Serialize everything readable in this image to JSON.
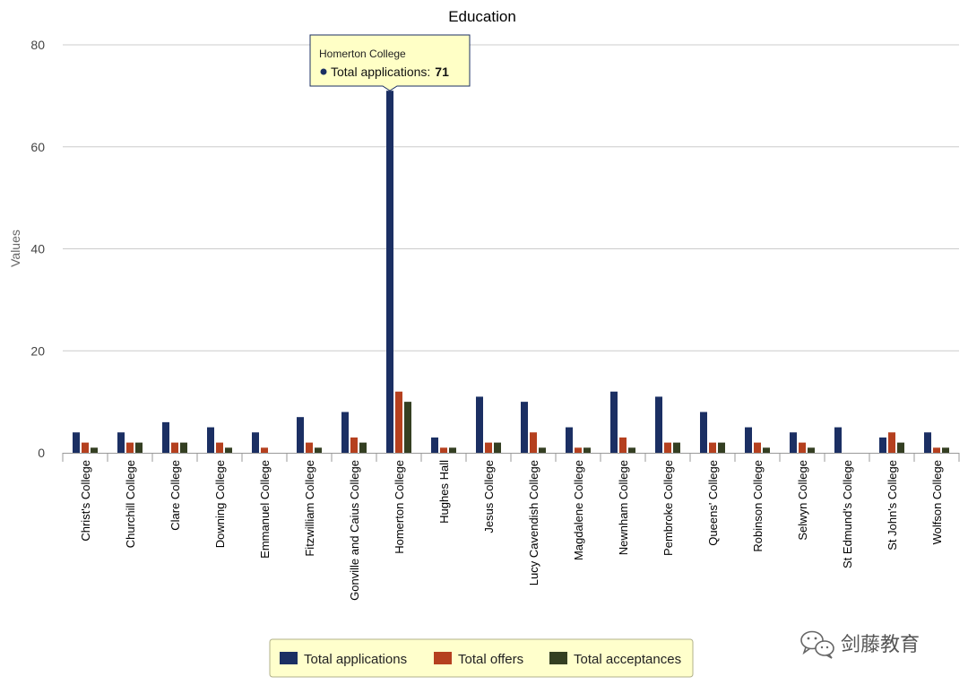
{
  "chart_data": {
    "type": "bar",
    "title": "Education",
    "ylabel": "Values",
    "xlabel": "",
    "ylim": [
      0,
      80
    ],
    "yticks": [
      0,
      20,
      40,
      60,
      80
    ],
    "grid": true,
    "legend_placement": "bottom",
    "categories": [
      "Christ's College",
      "Churchill College",
      "Clare College",
      "Downing College",
      "Emmanuel College",
      "Fitzwilliam College",
      "Gonville and Caius College",
      "Homerton College",
      "Hughes Hall",
      "Jesus College",
      "Lucy Cavendish College",
      "Magdalene College",
      "Newnham College",
      "Pembroke College",
      "Queens' College",
      "Robinson College",
      "Selwyn College",
      "St Edmund's College",
      "St John's College",
      "Wolfson College"
    ],
    "series": [
      {
        "name": "Total applications",
        "color": "#1b2f63",
        "values": [
          4,
          4,
          6,
          5,
          4,
          7,
          8,
          71,
          3,
          11,
          10,
          5,
          12,
          11,
          8,
          5,
          4,
          5,
          3,
          4
        ]
      },
      {
        "name": "Total offers",
        "color": "#b5401f",
        "values": [
          2,
          2,
          2,
          2,
          1,
          2,
          3,
          12,
          1,
          2,
          4,
          1,
          3,
          2,
          2,
          2,
          2,
          0,
          4,
          1
        ]
      },
      {
        "name": "Total acceptances",
        "color": "#343f22",
        "values": [
          1,
          2,
          2,
          1,
          0,
          1,
          2,
          10,
          1,
          2,
          1,
          1,
          1,
          2,
          2,
          1,
          1,
          0,
          2,
          1
        ]
      }
    ],
    "tooltip": {
      "category_index": 7,
      "series_index": 0,
      "name": "Homerton College",
      "label": "Total applications:",
      "value": "71"
    }
  },
  "watermark": {
    "text": "剑藤教育",
    "icon": "wechat-icon"
  }
}
